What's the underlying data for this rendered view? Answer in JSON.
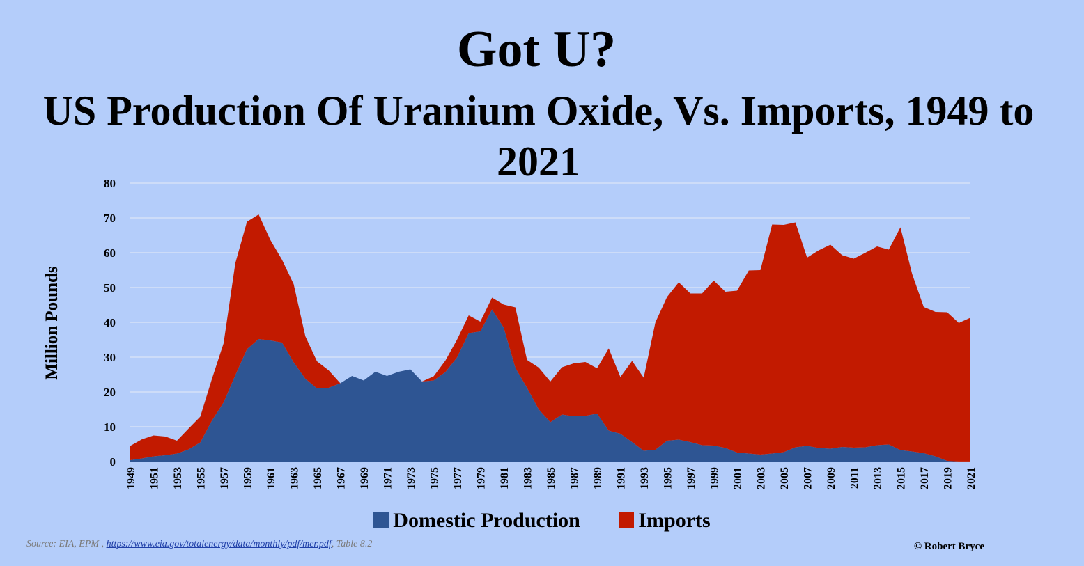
{
  "colors": {
    "background": "#b4cdfa",
    "domestic": "#2e5593",
    "imports": "#c21a00",
    "grid": "#e6ecf7"
  },
  "credit": "© Robert Bryce",
  "source": {
    "prefix": "Source: EIA, EPM , ",
    "link": "https://www.eia.gov/totalenergy/data/monthly/pdf/mer.pdf",
    "suffix": ", Table 8.2"
  },
  "chart_data": {
    "type": "area",
    "stacked": true,
    "title": "Got U?",
    "subtitle": "US Production Of Uranium Oxide, Vs. Imports, 1949 to 2021",
    "xlabel": "",
    "ylabel": "Million Pounds",
    "ylim": [
      0,
      80
    ],
    "yticks": [
      "0",
      "10",
      "20",
      "30",
      "40",
      "50",
      "60",
      "70",
      "80"
    ],
    "grid": true,
    "legend_position": "bottom",
    "x": [
      1949,
      1950,
      1951,
      1952,
      1953,
      1954,
      1955,
      1956,
      1957,
      1958,
      1959,
      1960,
      1961,
      1962,
      1963,
      1964,
      1965,
      1966,
      1967,
      1968,
      1969,
      1970,
      1971,
      1972,
      1973,
      1974,
      1975,
      1976,
      1977,
      1978,
      1979,
      1980,
      1981,
      1982,
      1983,
      1984,
      1985,
      1986,
      1987,
      1988,
      1989,
      1990,
      1991,
      1992,
      1993,
      1994,
      1995,
      1996,
      1997,
      1998,
      1999,
      2000,
      2001,
      2002,
      2003,
      2004,
      2005,
      2006,
      2007,
      2008,
      2009,
      2010,
      2011,
      2012,
      2013,
      2014,
      2015,
      2016,
      2017,
      2018,
      2019,
      2020,
      2021
    ],
    "xtick_labels": [
      "1949",
      "1951",
      "1953",
      "1955",
      "1957",
      "1959",
      "1961",
      "1963",
      "1965",
      "1967",
      "1969",
      "1971",
      "1973",
      "1975",
      "1977",
      "1979",
      "1981",
      "1983",
      "1985",
      "1987",
      "1989",
      "1991",
      "1993",
      "1995",
      "1997",
      "1999",
      "2001",
      "2003",
      "2005",
      "2007",
      "2009",
      "2011",
      "2013",
      "2015",
      "2017",
      "2019",
      "2021"
    ],
    "series": [
      {
        "name": "Domestic Production",
        "values": [
          0.4,
          0.9,
          1.5,
          1.8,
          2.3,
          3.5,
          5.5,
          11.8,
          17.0,
          24.8,
          32.3,
          35.2,
          34.8,
          34.2,
          28.5,
          23.8,
          21.0,
          21.2,
          22.5,
          24.6,
          23.3,
          25.8,
          24.6,
          25.8,
          26.5,
          23.0,
          23.3,
          25.7,
          29.9,
          36.9,
          37.4,
          43.7,
          38.5,
          26.9,
          21.2,
          15.0,
          11.3,
          13.5,
          13.0,
          13.1,
          13.8,
          8.9,
          8.0,
          5.6,
          3.1,
          3.4,
          6.0,
          6.3,
          5.6,
          4.7,
          4.6,
          3.9,
          2.6,
          2.3,
          2.0,
          2.3,
          2.7,
          4.1,
          4.5,
          3.9,
          3.7,
          4.2,
          4.0,
          4.1,
          4.7,
          4.9,
          3.3,
          2.9,
          2.4,
          1.5,
          0.2,
          0.03,
          0.02
        ]
      },
      {
        "name": "Imports",
        "values": [
          4.1,
          5.5,
          6.0,
          5.4,
          3.7,
          6.0,
          7.4,
          12.0,
          17.0,
          32.2,
          36.6,
          35.8,
          28.9,
          23.8,
          22.5,
          12.2,
          7.8,
          5.0,
          0.0,
          0.0,
          0.0,
          0.0,
          0.0,
          0.0,
          0.0,
          0.0,
          1.2,
          3.3,
          5.1,
          5.1,
          2.8,
          3.4,
          6.6,
          17.4,
          8.0,
          12.0,
          11.7,
          13.6,
          15.2,
          15.5,
          13.0,
          23.6,
          16.3,
          23.3,
          21.0,
          36.6,
          41.3,
          45.2,
          42.7,
          43.6,
          47.4,
          44.9,
          46.5,
          52.6,
          53.0,
          65.8,
          65.3,
          64.6,
          54.1,
          56.8,
          58.6,
          55.1,
          54.3,
          55.9,
          57.1,
          56.0,
          64.0,
          51.0,
          42.0,
          41.5,
          42.7,
          39.8,
          41.3
        ]
      }
    ]
  }
}
